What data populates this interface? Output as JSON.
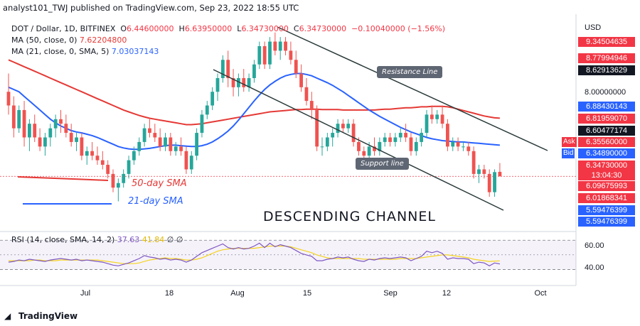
{
  "header": "analyst101_TWJ published on TradingView.com, Sep 23, 2022 18:55 UTC",
  "symbol_line": {
    "symbol": "DOT / Dollar, 1D, BITFINEX",
    "o_label": "O",
    "o": "6.44600000",
    "h_label": "H",
    "h": "6.63950000",
    "l_label": "L",
    "l": "6.34730000",
    "c_label": "C",
    "c": "6.34730000",
    "change": "−0.10040000 (−1.56%)"
  },
  "ma50": {
    "label": "MA (50, close, 0)",
    "value": "7.62204800",
    "color": "#e53935"
  },
  "ma21": {
    "label": "MA (21, close, 0, SMA, 5)",
    "value": "7.03037143",
    "color": "#2962ff"
  },
  "rsi": {
    "label": "RSI (14, close, SMA, 14, 2)",
    "value": "37.63",
    "sma_value": "41.84",
    "extra": "∅ ∅",
    "color": "#7e57c2",
    "sma_color": "#f5d320"
  },
  "currency": "USD",
  "price_tags": [
    {
      "text": "9.34504635",
      "bg": "#f23645",
      "white": true
    },
    {
      "text": "8.77994946",
      "bg": "#f23645",
      "white": true
    },
    {
      "text": "8.62913629",
      "bg": "#131722",
      "white": true
    },
    {
      "text": "6.88430143",
      "bg": "#2962ff",
      "white": true
    },
    {
      "text": "6.81959070",
      "bg": "#f23645",
      "white": true
    },
    {
      "text": "6.60477174",
      "bg": "#131722",
      "white": true
    },
    {
      "text": "6.35560000",
      "bg": "#f23645",
      "white": true,
      "prefix": "Ask"
    },
    {
      "text": "6.34890000",
      "bg": "#2962ff",
      "white": true,
      "prefix": "Bid"
    },
    {
      "text": "6.34730000",
      "bg": "#f23645",
      "white": true
    },
    {
      "text": "13:04:30",
      "bg": "#f23645",
      "white": true
    },
    {
      "text": "6.09675993",
      "bg": "#f23645",
      "white": true
    },
    {
      "text": "6.01868341",
      "bg": "#f23645",
      "white": true
    },
    {
      "text": "5.59476399",
      "bg": "#2962ff",
      "white": true
    },
    {
      "text": "5.59476399",
      "bg": "#2962ff",
      "white": true
    }
  ],
  "price_axis_label": "8.00000000",
  "rsi_axis_labels": [
    "60.00",
    "40.00"
  ],
  "x_labels": [
    "Jul",
    "18",
    "Aug",
    "15",
    "Sep",
    "12",
    "Oct"
  ],
  "annotations": {
    "sma50": "50-day SMA",
    "sma21": "21-day SMA",
    "title": "DESCENDING  CHANNEL",
    "resistance": "Resistance Line",
    "support": "Support line"
  },
  "footer": "TradingView",
  "chart_data": {
    "type": "candlestick",
    "symbol": "DOT / Dollar",
    "ylim": [
      5.2,
      9.9
    ],
    "candles": [
      {
        "date": "Jun 21",
        "o": 8.2,
        "h": 8.6,
        "l": 7.7,
        "c": 7.9
      },
      {
        "date": "Jun 22",
        "o": 7.9,
        "h": 8.1,
        "l": 7.2,
        "c": 7.4
      },
      {
        "date": "Jun 23",
        "o": 7.4,
        "h": 7.9,
        "l": 7.3,
        "c": 7.8
      },
      {
        "date": "Jun 24",
        "o": 7.8,
        "h": 8.0,
        "l": 7.0,
        "c": 7.2
      },
      {
        "date": "Jun 25",
        "o": 7.2,
        "h": 7.6,
        "l": 6.9,
        "c": 7.5
      },
      {
        "date": "Jun 26",
        "o": 7.5,
        "h": 7.7,
        "l": 7.1,
        "c": 7.2
      },
      {
        "date": "Jun 27",
        "o": 7.2,
        "h": 7.4,
        "l": 6.9,
        "c": 7.0
      },
      {
        "date": "Jun 28",
        "o": 7.0,
        "h": 7.3,
        "l": 6.8,
        "c": 7.2
      },
      {
        "date": "Jun 29",
        "o": 7.2,
        "h": 7.5,
        "l": 7.0,
        "c": 7.4
      },
      {
        "date": "Jun 30",
        "o": 7.4,
        "h": 7.7,
        "l": 7.2,
        "c": 7.6
      },
      {
        "date": "Jul 1",
        "o": 7.6,
        "h": 7.8,
        "l": 7.3,
        "c": 7.5
      },
      {
        "date": "Jul 2",
        "o": 7.5,
        "h": 7.7,
        "l": 7.2,
        "c": 7.3
      },
      {
        "date": "Jul 3",
        "o": 7.3,
        "h": 7.5,
        "l": 7.0,
        "c": 7.1
      },
      {
        "date": "Jul 4",
        "o": 7.1,
        "h": 7.3,
        "l": 6.9,
        "c": 7.2
      },
      {
        "date": "Jul 5",
        "o": 7.2,
        "h": 7.3,
        "l": 6.7,
        "c": 6.8
      },
      {
        "date": "Jul 6",
        "o": 6.8,
        "h": 7.0,
        "l": 6.6,
        "c": 6.9
      },
      {
        "date": "Jul 7",
        "o": 6.9,
        "h": 7.1,
        "l": 6.7,
        "c": 6.8
      },
      {
        "date": "Jul 8",
        "o": 6.8,
        "h": 7.0,
        "l": 6.6,
        "c": 6.7
      },
      {
        "date": "Jul 9",
        "o": 6.7,
        "h": 6.9,
        "l": 6.5,
        "c": 6.6
      },
      {
        "date": "Jul 10",
        "o": 6.6,
        "h": 6.7,
        "l": 6.3,
        "c": 6.4
      },
      {
        "date": "Jul 11",
        "o": 6.4,
        "h": 6.5,
        "l": 6.0,
        "c": 6.1
      },
      {
        "date": "Jul 12",
        "o": 6.1,
        "h": 6.3,
        "l": 5.8,
        "c": 6.2
      },
      {
        "date": "Jul 13",
        "o": 6.2,
        "h": 6.5,
        "l": 6.1,
        "c": 6.4
      },
      {
        "date": "Jul 14",
        "o": 6.4,
        "h": 6.8,
        "l": 6.3,
        "c": 6.7
      },
      {
        "date": "Jul 15",
        "o": 6.7,
        "h": 7.0,
        "l": 6.6,
        "c": 6.9
      },
      {
        "date": "Jul 16",
        "o": 6.9,
        "h": 7.2,
        "l": 6.8,
        "c": 7.1
      },
      {
        "date": "Jul 17",
        "o": 7.1,
        "h": 7.5,
        "l": 7.0,
        "c": 7.4
      },
      {
        "date": "Jul 18",
        "o": 7.4,
        "h": 7.6,
        "l": 7.2,
        "c": 7.3
      },
      {
        "date": "Jul 19",
        "o": 7.3,
        "h": 7.5,
        "l": 7.1,
        "c": 7.2
      },
      {
        "date": "Jul 20",
        "o": 7.2,
        "h": 7.4,
        "l": 6.9,
        "c": 7.0
      },
      {
        "date": "Jul 21",
        "o": 7.0,
        "h": 7.3,
        "l": 6.9,
        "c": 7.2
      },
      {
        "date": "Jul 22",
        "o": 7.2,
        "h": 7.3,
        "l": 6.8,
        "c": 6.9
      },
      {
        "date": "Jul 23",
        "o": 6.9,
        "h": 7.1,
        "l": 6.8,
        "c": 7.0
      },
      {
        "date": "Jul 24",
        "o": 7.0,
        "h": 7.2,
        "l": 6.8,
        "c": 6.9
      },
      {
        "date": "Jul 25",
        "o": 6.9,
        "h": 7.0,
        "l": 6.4,
        "c": 6.5
      },
      {
        "date": "Jul 26",
        "o": 6.5,
        "h": 6.9,
        "l": 6.4,
        "c": 6.8
      },
      {
        "date": "Jul 27",
        "o": 6.8,
        "h": 7.4,
        "l": 6.7,
        "c": 7.3
      },
      {
        "date": "Jul 28",
        "o": 7.3,
        "h": 7.8,
        "l": 7.2,
        "c": 7.7
      },
      {
        "date": "Jul 29",
        "o": 7.7,
        "h": 8.0,
        "l": 7.6,
        "c": 7.9
      },
      {
        "date": "Jul 30",
        "o": 7.9,
        "h": 8.3,
        "l": 7.8,
        "c": 8.2
      },
      {
        "date": "Jul 31",
        "o": 8.2,
        "h": 8.6,
        "l": 8.0,
        "c": 8.5
      },
      {
        "date": "Aug 1",
        "o": 8.5,
        "h": 9.0,
        "l": 8.4,
        "c": 8.9
      },
      {
        "date": "Aug 2",
        "o": 8.9,
        "h": 9.1,
        "l": 8.3,
        "c": 8.5
      },
      {
        "date": "Aug 3",
        "o": 8.5,
        "h": 8.7,
        "l": 8.1,
        "c": 8.3
      },
      {
        "date": "Aug 4",
        "o": 8.3,
        "h": 8.6,
        "l": 8.1,
        "c": 8.5
      },
      {
        "date": "Aug 5",
        "o": 8.5,
        "h": 8.7,
        "l": 8.2,
        "c": 8.3
      },
      {
        "date": "Aug 6",
        "o": 8.3,
        "h": 8.6,
        "l": 8.2,
        "c": 8.5
      },
      {
        "date": "Aug 7",
        "o": 8.5,
        "h": 8.9,
        "l": 8.4,
        "c": 8.8
      },
      {
        "date": "Aug 8",
        "o": 8.8,
        "h": 9.3,
        "l": 8.7,
        "c": 9.2
      },
      {
        "date": "Aug 9",
        "o": 9.2,
        "h": 9.3,
        "l": 8.7,
        "c": 8.8
      },
      {
        "date": "Aug 10",
        "o": 8.8,
        "h": 9.4,
        "l": 8.7,
        "c": 9.3
      },
      {
        "date": "Aug 11",
        "o": 9.3,
        "h": 9.5,
        "l": 9.0,
        "c": 9.1
      },
      {
        "date": "Aug 12",
        "o": 9.1,
        "h": 9.4,
        "l": 8.9,
        "c": 9.3
      },
      {
        "date": "Aug 13",
        "o": 9.3,
        "h": 9.4,
        "l": 9.0,
        "c": 9.1
      },
      {
        "date": "Aug 14",
        "o": 9.1,
        "h": 9.3,
        "l": 8.8,
        "c": 8.9
      },
      {
        "date": "Aug 15",
        "o": 8.9,
        "h": 9.1,
        "l": 8.5,
        "c": 8.6
      },
      {
        "date": "Aug 16",
        "o": 8.6,
        "h": 8.8,
        "l": 8.2,
        "c": 8.3
      },
      {
        "date": "Aug 17",
        "o": 8.3,
        "h": 8.5,
        "l": 7.9,
        "c": 8.0
      },
      {
        "date": "Aug 18",
        "o": 8.0,
        "h": 8.2,
        "l": 7.6,
        "c": 7.8
      },
      {
        "date": "Aug 19",
        "o": 7.8,
        "h": 7.9,
        "l": 6.9,
        "c": 7.0
      },
      {
        "date": "Aug 20",
        "o": 7.0,
        "h": 7.2,
        "l": 6.8,
        "c": 7.0
      },
      {
        "date": "Aug 21",
        "o": 7.0,
        "h": 7.3,
        "l": 6.9,
        "c": 7.2
      },
      {
        "date": "Aug 22",
        "o": 7.2,
        "h": 7.4,
        "l": 7.0,
        "c": 7.3
      },
      {
        "date": "Aug 23",
        "o": 7.3,
        "h": 7.6,
        "l": 7.2,
        "c": 7.5
      },
      {
        "date": "Aug 24",
        "o": 7.5,
        "h": 7.6,
        "l": 7.3,
        "c": 7.4
      },
      {
        "date": "Aug 25",
        "o": 7.4,
        "h": 7.6,
        "l": 7.3,
        "c": 7.5
      },
      {
        "date": "Aug 26",
        "o": 7.5,
        "h": 7.6,
        "l": 7.0,
        "c": 7.1
      },
      {
        "date": "Aug 27",
        "o": 7.1,
        "h": 7.2,
        "l": 6.8,
        "c": 6.9
      },
      {
        "date": "Aug 28",
        "o": 6.9,
        "h": 7.0,
        "l": 6.7,
        "c": 6.8
      },
      {
        "date": "Aug 29",
        "o": 6.8,
        "h": 7.1,
        "l": 6.7,
        "c": 7.0
      },
      {
        "date": "Aug 30",
        "o": 7.0,
        "h": 7.2,
        "l": 6.8,
        "c": 6.9
      },
      {
        "date": "Aug 31",
        "o": 6.9,
        "h": 7.2,
        "l": 6.8,
        "c": 7.1
      },
      {
        "date": "Sep 1",
        "o": 7.1,
        "h": 7.3,
        "l": 7.0,
        "c": 7.2
      },
      {
        "date": "Sep 2",
        "o": 7.2,
        "h": 7.3,
        "l": 7.0,
        "c": 7.1
      },
      {
        "date": "Sep 3",
        "o": 7.1,
        "h": 7.3,
        "l": 7.0,
        "c": 7.2
      },
      {
        "date": "Sep 4",
        "o": 7.2,
        "h": 7.4,
        "l": 7.1,
        "c": 7.3
      },
      {
        "date": "Sep 5",
        "o": 7.3,
        "h": 7.5,
        "l": 7.1,
        "c": 7.2
      },
      {
        "date": "Sep 6",
        "o": 7.2,
        "h": 7.3,
        "l": 6.8,
        "c": 6.9
      },
      {
        "date": "Sep 7",
        "o": 6.9,
        "h": 7.2,
        "l": 6.8,
        "c": 7.1
      },
      {
        "date": "Sep 8",
        "o": 7.1,
        "h": 7.4,
        "l": 7.0,
        "c": 7.3
      },
      {
        "date": "Sep 9",
        "o": 7.3,
        "h": 7.8,
        "l": 7.2,
        "c": 7.7
      },
      {
        "date": "Sep 10",
        "o": 7.7,
        "h": 7.9,
        "l": 7.5,
        "c": 7.6
      },
      {
        "date": "Sep 11",
        "o": 7.6,
        "h": 7.8,
        "l": 7.5,
        "c": 7.7
      },
      {
        "date": "Sep 12",
        "o": 7.7,
        "h": 7.9,
        "l": 7.4,
        "c": 7.5
      },
      {
        "date": "Sep 13",
        "o": 7.5,
        "h": 7.6,
        "l": 6.9,
        "c": 7.0
      },
      {
        "date": "Sep 14",
        "o": 7.0,
        "h": 7.2,
        "l": 6.9,
        "c": 7.1
      },
      {
        "date": "Sep 15",
        "o": 7.1,
        "h": 7.2,
        "l": 6.9,
        "c": 7.0
      },
      {
        "date": "Sep 16",
        "o": 7.0,
        "h": 7.1,
        "l": 6.9,
        "c": 7.0
      },
      {
        "date": "Sep 17",
        "o": 7.0,
        "h": 7.1,
        "l": 6.8,
        "c": 6.9
      },
      {
        "date": "Sep 18",
        "o": 6.9,
        "h": 7.0,
        "l": 6.3,
        "c": 6.4
      },
      {
        "date": "Sep 19",
        "o": 6.4,
        "h": 6.6,
        "l": 6.2,
        "c": 6.5
      },
      {
        "date": "Sep 20",
        "o": 6.5,
        "h": 6.6,
        "l": 6.3,
        "c": 6.4
      },
      {
        "date": "Sep 21",
        "o": 6.4,
        "h": 6.5,
        "l": 5.9,
        "c": 6.0
      },
      {
        "date": "Sep 22",
        "o": 6.0,
        "h": 6.5,
        "l": 5.9,
        "c": 6.44
      },
      {
        "date": "Sep 23",
        "o": 6.446,
        "h": 6.6395,
        "l": 6.3473,
        "c": 6.3473
      }
    ],
    "ma50": [
      8.9,
      8.85,
      8.8,
      8.75,
      8.7,
      8.65,
      8.6,
      8.55,
      8.5,
      8.45,
      8.4,
      8.35,
      8.3,
      8.25,
      8.2,
      8.15,
      8.1,
      8.05,
      8.0,
      7.95,
      7.9,
      7.85,
      7.8,
      7.76,
      7.72,
      7.68,
      7.65,
      7.62,
      7.6,
      7.58,
      7.56,
      7.54,
      7.52,
      7.5,
      7.48,
      7.48,
      7.49,
      7.5,
      7.52,
      7.54,
      7.56,
      7.58,
      7.6,
      7.62,
      7.64,
      7.66,
      7.68,
      7.7,
      7.72,
      7.74,
      7.76,
      7.77,
      7.78,
      7.79,
      7.8,
      7.81,
      7.81,
      7.82,
      7.82,
      7.82,
      7.81,
      7.81,
      7.81,
      7.81,
      7.8,
      7.8,
      7.8,
      7.8,
      7.8,
      7.8,
      7.8,
      7.81,
      7.82,
      7.82,
      7.83,
      7.84,
      7.85,
      7.85,
      7.86,
      7.87,
      7.87,
      7.88,
      7.88,
      7.88,
      7.87,
      7.85,
      7.82,
      7.79,
      7.76,
      7.73,
      7.7,
      7.67,
      7.65,
      7.63,
      7.622
    ],
    "ma21": [
      8.3,
      8.25,
      8.2,
      8.1,
      8.0,
      7.9,
      7.8,
      7.7,
      7.6,
      7.52,
      7.45,
      7.4,
      7.35,
      7.32,
      7.3,
      7.27,
      7.24,
      7.2,
      7.15,
      7.1,
      7.05,
      7.0,
      6.97,
      6.95,
      6.94,
      6.94,
      6.95,
      6.96,
      6.98,
      7.0,
      7.02,
      7.03,
      7.03,
      7.02,
      7.01,
      7.0,
      7.0,
      7.02,
      7.05,
      7.1,
      7.17,
      7.25,
      7.34,
      7.45,
      7.58,
      7.72,
      7.86,
      8.0,
      8.13,
      8.25,
      8.35,
      8.43,
      8.5,
      8.55,
      8.58,
      8.6,
      8.6,
      8.58,
      8.55,
      8.5,
      8.45,
      8.4,
      8.34,
      8.27,
      8.2,
      8.12,
      8.04,
      7.96,
      7.88,
      7.8,
      7.73,
      7.66,
      7.6,
      7.54,
      7.48,
      7.42,
      7.37,
      7.32,
      7.28,
      7.24,
      7.2,
      7.17,
      7.15,
      7.13,
      7.12,
      7.11,
      7.1,
      7.1,
      7.09,
      7.08,
      7.07,
      7.06,
      7.05,
      7.04,
      7.03
    ],
    "rsi": [
      40,
      41,
      43,
      42,
      44,
      43,
      42,
      41,
      43,
      44,
      45,
      44,
      43,
      44,
      42,
      43,
      42,
      41,
      40,
      38,
      36,
      35,
      37,
      39,
      42,
      45,
      49,
      47,
      46,
      44,
      45,
      43,
      44,
      43,
      40,
      43,
      48,
      53,
      56,
      59,
      62,
      65,
      60,
      58,
      60,
      58,
      59,
      62,
      66,
      60,
      66,
      61,
      64,
      62,
      60,
      56,
      52,
      50,
      48,
      42,
      42,
      44,
      45,
      47,
      46,
      47,
      44,
      42,
      41,
      44,
      43,
      45,
      46,
      45,
      46,
      47,
      46,
      42,
      45,
      48,
      55,
      53,
      55,
      52,
      44,
      46,
      45,
      45,
      44,
      38,
      40,
      39,
      35,
      39,
      37.63
    ],
    "rsi_sma": [
      42,
      42,
      42,
      42,
      42,
      43,
      43,
      42,
      42,
      42,
      43,
      43,
      43,
      43,
      43,
      43,
      43,
      43,
      42,
      41,
      40,
      39,
      38,
      38,
      38,
      39,
      41,
      43,
      44,
      45,
      46,
      45,
      45,
      44,
      43,
      43,
      44,
      46,
      49,
      52,
      55,
      57,
      58,
      59,
      59,
      59,
      59,
      59,
      60,
      61,
      62,
      62,
      62,
      62,
      61,
      59,
      57,
      55,
      53,
      50,
      48,
      46,
      45,
      45,
      45,
      45,
      45,
      45,
      44,
      44,
      44,
      44,
      44,
      44,
      44,
      45,
      45,
      45,
      45,
      46,
      47,
      48,
      49,
      50,
      50,
      49,
      48,
      47,
      46,
      44,
      43,
      42,
      41,
      41.5,
      41.84
    ],
    "rsi_levels": [
      70,
      30
    ],
    "trendlines": [
      "Resistance Line",
      "Support line"
    ]
  }
}
